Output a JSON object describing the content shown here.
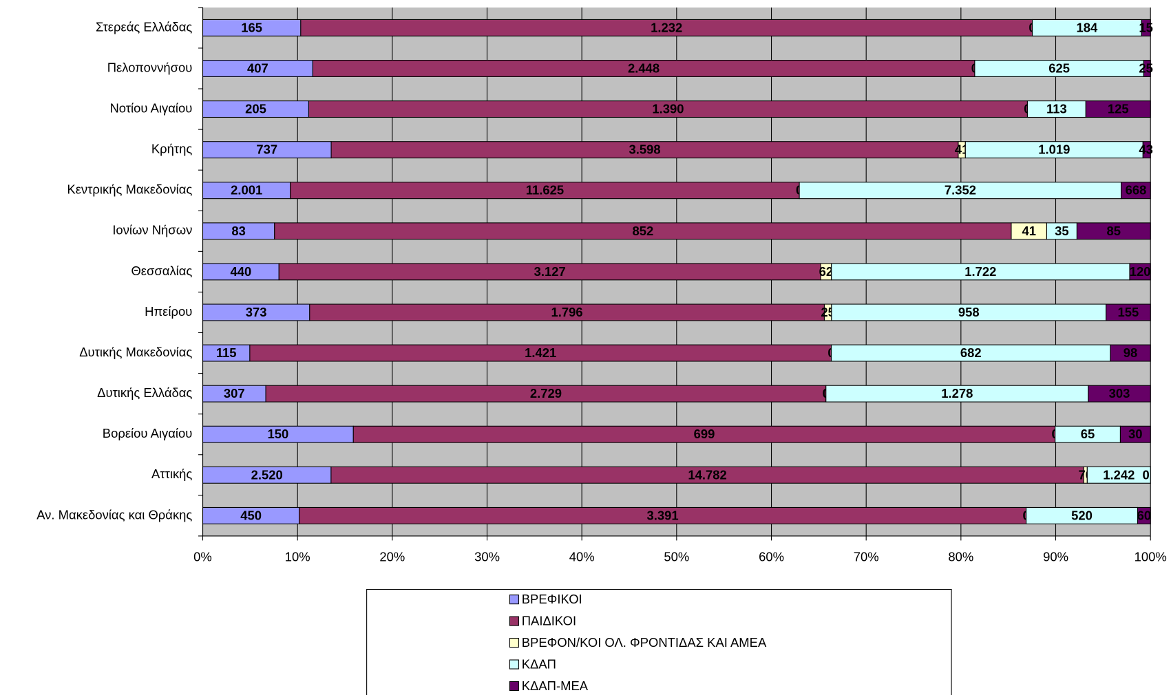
{
  "chart_data": {
    "type": "stacked-bar-100",
    "orientation": "horizontal",
    "categories": [
      "Στερεάς Ελλάδας",
      "Πελοποννήσου",
      "Νοτίου Αιγαίου",
      "Κρήτης",
      "Κεντρικής Μακεδονίας",
      "Ιονίων Νήσων",
      "Θεσσαλίας",
      "Ηπείρου",
      "Δυτικής Μακεδονίας",
      "Δυτικής Ελλάδας",
      "Βορείου Αιγαίου",
      "Αττικής",
      "Αν. Μακεδονίας και Θράκης"
    ],
    "series": [
      {
        "name": "ΒΡΕΦΙΚΟΙ",
        "color": "#9999ff",
        "label_color": "#000000",
        "values": [
          165,
          407,
          205,
          737,
          2001,
          83,
          440,
          373,
          115,
          307,
          150,
          2520,
          450
        ],
        "value_labels": [
          "165",
          "407",
          "205",
          "737",
          "2.001",
          "83",
          "440",
          "373",
          "115",
          "307",
          "150",
          "2.520",
          "450"
        ]
      },
      {
        "name": "ΠΑΙΔΙΚΟΙ",
        "color": "#993366",
        "label_color": "#ffffff",
        "values": [
          1232,
          2448,
          1390,
          3598,
          11625,
          852,
          3127,
          1796,
          1421,
          2729,
          699,
          14782,
          3391
        ],
        "value_labels": [
          "1.232",
          "2.448",
          "1.390",
          "3.598",
          "11.625",
          "852",
          "3.127",
          "1.796",
          "1.421",
          "2.729",
          "699",
          "14.782",
          "3.391"
        ]
      },
      {
        "name": "ΒΡΕΦΟΝ/ΚΟΙ ΟΛ. ΦΡΟΝΤΙΔΑΣ ΚΑΙ ΑΜΕΑ",
        "color": "#ffffcc",
        "label_color": "#000000",
        "values": [
          0,
          0,
          0,
          41,
          0,
          41,
          62,
          25,
          0,
          0,
          0,
          70,
          0
        ],
        "value_labels": [
          "0",
          "0",
          "0",
          "41",
          "0",
          "41",
          "62",
          "25",
          "0",
          "0",
          "0",
          "70",
          "0"
        ]
      },
      {
        "name": "ΚΔΑΠ",
        "color": "#ccffff",
        "label_color": "#000000",
        "values": [
          184,
          625,
          113,
          1019,
          7352,
          35,
          1722,
          958,
          682,
          1278,
          65,
          1242,
          520
        ],
        "value_labels": [
          "184",
          "625",
          "113",
          "1.019",
          "7.352",
          "35",
          "1.722",
          "958",
          "682",
          "1.278",
          "65",
          "1.242",
          "520"
        ]
      },
      {
        "name": "ΚΔΑΠ-ΜΕΑ",
        "color": "#660066",
        "label_color": "#ffffff",
        "values": [
          15,
          25,
          125,
          43,
          668,
          85,
          120,
          155,
          98,
          303,
          30,
          0,
          60
        ],
        "value_labels": [
          "15",
          "25",
          "125",
          "43",
          "668",
          "85",
          "120",
          "155",
          "98",
          "303",
          "30",
          "0",
          "60"
        ]
      }
    ],
    "xlim": [
      0,
      100
    ],
    "xticks": [
      {
        "value": 0,
        "label": "0%"
      },
      {
        "value": 10,
        "label": "10%"
      },
      {
        "value": 20,
        "label": "20%"
      },
      {
        "value": 30,
        "label": "30%"
      },
      {
        "value": 40,
        "label": "40%"
      },
      {
        "value": 50,
        "label": "50%"
      },
      {
        "value": 60,
        "label": "60%"
      },
      {
        "value": 70,
        "label": "70%"
      },
      {
        "value": 80,
        "label": "80%"
      },
      {
        "value": 90,
        "label": "90%"
      },
      {
        "value": 100,
        "label": "100%"
      }
    ],
    "grid": true,
    "plot_background": "#c0c0c0",
    "legend": "bottom"
  }
}
